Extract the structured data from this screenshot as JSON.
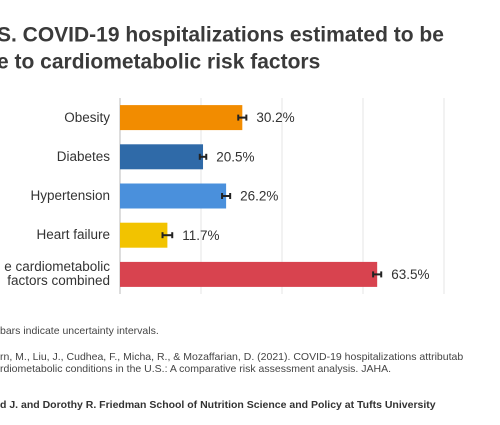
{
  "chart_data": {
    "type": "bar",
    "title_lines": [
      "S. COVID-19 hospitalizations estimated to be",
      "e to cardiometabolic risk factors"
    ],
    "categories": [
      "Obesity",
      "Diabetes",
      "Hypertension",
      "Heart failure",
      "e cardiometabolic\nfactors combined"
    ],
    "values": [
      30.2,
      20.5,
      26.2,
      11.7,
      63.5
    ],
    "value_labels": [
      "30.2%",
      "20.5%",
      "26.2%",
      "11.7%",
      "63.5%"
    ],
    "errors": [
      1.0,
      0.8,
      1.0,
      1.2,
      1.0
    ],
    "colors": [
      "#f28c00",
      "#2f6aa8",
      "#4a90dc",
      "#f2c300",
      "#d8434f"
    ],
    "xlim": [
      0,
      80
    ],
    "xticks": [
      0,
      20,
      40,
      60,
      80
    ],
    "grid": true,
    "footnotes": [
      "bars indicate uncertainty intervals.",
      "rn, M., Liu, J., Cudhea, F., Micha, R., & Mozaffarian, D. (2021). COVID-19 hospitalizations attributab",
      "rdiometabolic conditions in the U.S.: A comparative risk assessment analysis. JAHA."
    ],
    "source": "d J. and Dorothy R. Friedman School of Nutrition Science and Policy at Tufts University"
  }
}
